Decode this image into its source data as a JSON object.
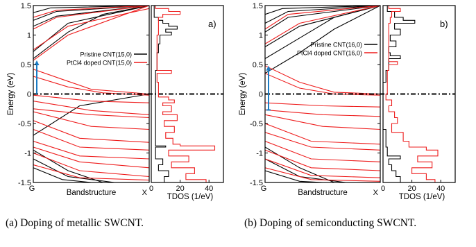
{
  "captions": {
    "a": "(a) Doping of metallic SWCNT.",
    "b": "(b) Doping of semiconducting SWCNT."
  },
  "chart_data": [
    {
      "type": "line",
      "panel_label": "a)",
      "ylabel": "Energy (eV)",
      "band_xlabel": "Bandstructure",
      "dos_xlabel": "TDOS (1/eV)",
      "band_xticks": [
        "G",
        "X"
      ],
      "ylim": [
        -1.5,
        1.5
      ],
      "yticks": [
        -1.5,
        -1,
        -0.5,
        0,
        0.5,
        1,
        1.5
      ],
      "dos_xlim": [
        0,
        50
      ],
      "dos_xticks": [
        0,
        20,
        40
      ],
      "fermi_level": 0,
      "legend_position": "top-right",
      "legend": [
        {
          "label": "Pristine CNT(15,0)",
          "color": "#000000"
        },
        {
          "label": "PtCl4 doped CNT(15,0)",
          "color": "#ee1c1c"
        }
      ],
      "arrow": {
        "k": 0.03,
        "from": 0.0,
        "to": 0.57,
        "color": "#1a7bc4"
      },
      "series": [
        {
          "color": "#000000",
          "bands": [
            {
              "x": [
                0,
                0.3,
                0.6,
                1
              ],
              "y": [
                0.6,
                1.05,
                1.35,
                1.5
              ]
            },
            {
              "x": [
                0,
                0.4,
                1
              ],
              "y": [
                -0.7,
                -0.2,
                0.0
              ]
            },
            {
              "x": [
                0,
                0.3,
                1
              ],
              "y": [
                0.72,
                1.2,
                1.5
              ]
            },
            {
              "x": [
                0,
                0.2,
                1
              ],
              "y": [
                1.15,
                1.32,
                1.5
              ]
            },
            {
              "x": [
                0,
                0.2,
                1
              ],
              "y": [
                1.25,
                1.4,
                1.5
              ]
            },
            {
              "x": [
                0,
                0.15,
                1
              ],
              "y": [
                1.38,
                1.46,
                1.5
              ]
            },
            {
              "x": [
                0,
                0.3,
                0.6
              ],
              "y": [
                -0.95,
                -1.3,
                -1.5
              ]
            },
            {
              "x": [
                0,
                0.3,
                0.7
              ],
              "y": [
                -1.1,
                -1.4,
                -1.5
              ]
            },
            {
              "x": [
                0,
                0.25,
                0.5
              ],
              "y": [
                -1.25,
                -1.45,
                -1.5
              ]
            }
          ]
        },
        {
          "color": "#ee1c1c",
          "bands": [
            {
              "x": [
                0,
                0.25,
                0.5,
                1
              ],
              "y": [
                0.42,
                0.25,
                0.08,
                0.0
              ]
            },
            {
              "x": [
                0,
                0.3,
                0.6,
                1
              ],
              "y": [
                0.3,
                0.12,
                0.02,
                -0.02
              ]
            },
            {
              "x": [
                0,
                0.3,
                1
              ],
              "y": [
                0.57,
                1.0,
                1.5
              ]
            },
            {
              "x": [
                0,
                0.3,
                1
              ],
              "y": [
                0.75,
                1.15,
                1.45
              ]
            },
            {
              "x": [
                0,
                0.2,
                1
              ],
              "y": [
                1.1,
                1.3,
                1.5
              ]
            },
            {
              "x": [
                0,
                0.2,
                1
              ],
              "y": [
                1.3,
                1.42,
                1.5
              ]
            },
            {
              "x": [
                0,
                0.5,
                1
              ],
              "y": [
                -0.02,
                -0.12,
                -0.15
              ]
            },
            {
              "x": [
                0,
                0.5,
                1
              ],
              "y": [
                -0.12,
                -0.28,
                -0.35
              ]
            },
            {
              "x": [
                0,
                0.5,
                1
              ],
              "y": [
                -0.3,
                -0.55,
                -0.6
              ]
            },
            {
              "x": [
                0,
                0.4,
                1
              ],
              "y": [
                -0.45,
                -0.75,
                -0.82
              ]
            },
            {
              "x": [
                0,
                0.4,
                1
              ],
              "y": [
                -0.6,
                -0.9,
                -0.95
              ]
            },
            {
              "x": [
                0,
                0.4,
                1
              ],
              "y": [
                -0.8,
                -1.05,
                -1.1
              ]
            },
            {
              "x": [
                0,
                0.4,
                1
              ],
              "y": [
                -0.9,
                -1.15,
                -1.25
              ]
            },
            {
              "x": [
                0,
                0.4,
                1
              ],
              "y": [
                -1.0,
                -1.3,
                -1.4
              ]
            },
            {
              "x": [
                0,
                0.4,
                1
              ],
              "y": [
                -1.2,
                -1.42,
                -1.46
              ]
            },
            {
              "x": [
                0,
                0.5,
                1
              ],
              "y": [
                -0.25,
                -0.35,
                -0.4
              ]
            }
          ]
        }
      ],
      "dos": [
        {
          "color": "#000000",
          "energy": [
            1.5,
            1.3,
            1.25,
            1.2,
            1.15,
            1.1,
            1.05,
            1.0,
            0.85,
            0.7,
            0.6,
            0.4,
            0.2,
            0.0,
            -0.3,
            -0.6,
            -0.85,
            -0.88,
            -0.9,
            -1.0,
            -1.1,
            -1.2,
            -1.3,
            -1.4,
            -1.5
          ],
          "value": [
            2,
            5,
            8,
            12,
            18,
            10,
            14,
            6,
            5,
            4,
            4,
            3,
            3,
            3,
            3,
            3,
            3,
            10,
            3,
            3,
            8,
            5,
            12,
            9,
            14
          ]
        },
        {
          "color": "#ee1c1c",
          "energy": [
            1.5,
            1.45,
            1.4,
            1.35,
            1.3,
            1.2,
            1.0,
            0.8,
            0.6,
            0.45,
            0.4,
            0.35,
            0.2,
            0.0,
            -0.05,
            -0.1,
            -0.15,
            -0.2,
            -0.3,
            -0.35,
            -0.45,
            -0.55,
            -0.65,
            -0.75,
            -0.85,
            -0.88,
            -0.95,
            -1.05,
            -1.15,
            -1.25,
            -1.35,
            -1.45,
            -1.5
          ],
          "value": [
            3,
            12,
            20,
            8,
            5,
            5,
            4,
            4,
            4,
            4,
            14,
            4,
            5,
            5,
            12,
            16,
            8,
            14,
            8,
            18,
            9,
            16,
            10,
            15,
            20,
            44,
            12,
            26,
            14,
            30,
            24,
            38,
            20
          ]
        }
      ]
    },
    {
      "type": "line",
      "panel_label": "b)",
      "ylabel": "Energy (eV)",
      "band_xlabel": "Bandstructure",
      "dos_xlabel": "TDOS (1/eV)",
      "band_xticks": [
        "G",
        "X"
      ],
      "ylim": [
        -1.5,
        1.5
      ],
      "yticks": [
        -1.5,
        -1,
        -0.5,
        0,
        0.5,
        1,
        1.5
      ],
      "dos_xlim": [
        0,
        50
      ],
      "dos_xticks": [
        0,
        20,
        40
      ],
      "fermi_level": 0,
      "legend_position": "top-right",
      "legend": [
        {
          "label": "Pristine CNT(16,0)",
          "color": "#000000"
        },
        {
          "label": "PtCl4 doped CNT(16,0)",
          "color": "#ee1c1c"
        }
      ],
      "arrow": {
        "k": 0.03,
        "from": -0.27,
        "to": 0.48,
        "color": "#1a7bc4"
      },
      "series": [
        {
          "color": "#000000",
          "bands": [
            {
              "x": [
                0,
                0.3,
                0.6,
                1
              ],
              "y": [
                0.35,
                0.7,
                1.1,
                1.5
              ]
            },
            {
              "x": [
                0,
                0.3,
                0.6,
                1
              ],
              "y": [
                0.6,
                0.95,
                1.3,
                1.5
              ]
            },
            {
              "x": [
                0,
                0.3,
                1
              ],
              "y": [
                0.8,
                1.15,
                1.5
              ]
            },
            {
              "x": [
                0,
                0.2,
                1
              ],
              "y": [
                1.05,
                1.3,
                1.5
              ]
            },
            {
              "x": [
                0,
                0.2,
                1
              ],
              "y": [
                1.2,
                1.4,
                1.5
              ]
            },
            {
              "x": [
                0,
                0.15,
                1
              ],
              "y": [
                1.35,
                1.45,
                1.5
              ]
            },
            {
              "x": [
                0,
                0.3,
                0.6
              ],
              "y": [
                -0.9,
                -1.25,
                -1.5
              ]
            },
            {
              "x": [
                0,
                0.3,
                0.7
              ],
              "y": [
                -1.1,
                -1.4,
                -1.5
              ]
            },
            {
              "x": [
                0,
                0.3,
                0.5
              ],
              "y": [
                -1.3,
                -1.48,
                -1.5
              ]
            }
          ]
        },
        {
          "color": "#ee1c1c",
          "bands": [
            {
              "x": [
                0,
                0.3,
                0.6,
                1
              ],
              "y": [
                0.48,
                0.2,
                0.03,
                0.0
              ]
            },
            {
              "x": [
                0,
                0.3,
                0.6,
                1
              ],
              "y": [
                0.35,
                0.1,
                0.0,
                -0.02
              ]
            },
            {
              "x": [
                0,
                0.3,
                1
              ],
              "y": [
                0.85,
                1.2,
                1.5
              ]
            },
            {
              "x": [
                0,
                0.2,
                1
              ],
              "y": [
                1.1,
                1.35,
                1.5
              ]
            },
            {
              "x": [
                0,
                0.5,
                1
              ],
              "y": [
                -0.27,
                -0.35,
                -0.38
              ]
            },
            {
              "x": [
                0,
                0.5,
                1
              ],
              "y": [
                -0.35,
                -0.55,
                -0.6
              ]
            },
            {
              "x": [
                0,
                0.4,
                1
              ],
              "y": [
                -0.5,
                -0.8,
                -0.85
              ]
            },
            {
              "x": [
                0,
                0.4,
                1
              ],
              "y": [
                -0.65,
                -0.9,
                -0.95
              ]
            },
            {
              "x": [
                0,
                0.4,
                1
              ],
              "y": [
                -0.8,
                -1.1,
                -1.15
              ]
            },
            {
              "x": [
                0,
                0.4,
                1
              ],
              "y": [
                -0.95,
                -1.25,
                -1.3
              ]
            },
            {
              "x": [
                0,
                0.4,
                1
              ],
              "y": [
                -1.1,
                -1.38,
                -1.42
              ]
            },
            {
              "x": [
                0,
                0.4,
                1
              ],
              "y": [
                -1.25,
                -1.45,
                -1.48
              ]
            },
            {
              "x": [
                0,
                0.5,
                1
              ],
              "y": [
                -0.15,
                -0.2,
                -0.22
              ]
            }
          ]
        }
      ],
      "dos": [
        {
          "color": "#000000",
          "energy": [
            1.5,
            1.4,
            1.3,
            1.25,
            1.2,
            1.1,
            1.0,
            0.9,
            0.8,
            0.7,
            0.65,
            0.6,
            0.4,
            0.2,
            0.0,
            -0.2,
            -0.6,
            -0.9,
            -1.05,
            -1.1,
            -1.2,
            -1.3,
            -1.4,
            -1.5
          ],
          "value": [
            3,
            8,
            14,
            22,
            8,
            12,
            5,
            9,
            4,
            5,
            12,
            4,
            2,
            0,
            0,
            0,
            2,
            3,
            12,
            4,
            6,
            9,
            12,
            14
          ]
        },
        {
          "color": "#ee1c1c",
          "energy": [
            1.5,
            1.45,
            1.4,
            1.3,
            1.2,
            1.0,
            0.8,
            0.6,
            0.55,
            0.5,
            0.4,
            0.2,
            0.0,
            -0.1,
            -0.2,
            -0.3,
            -0.4,
            -0.5,
            -0.65,
            -0.8,
            -0.9,
            -0.95,
            -1.05,
            -1.15,
            -1.25,
            -1.35,
            -1.45,
            -1.5
          ],
          "value": [
            4,
            12,
            6,
            5,
            4,
            4,
            4,
            4,
            10,
            4,
            3,
            3,
            2,
            6,
            4,
            8,
            10,
            6,
            14,
            18,
            30,
            38,
            24,
            34,
            20,
            30,
            36,
            26
          ]
        }
      ]
    }
  ]
}
